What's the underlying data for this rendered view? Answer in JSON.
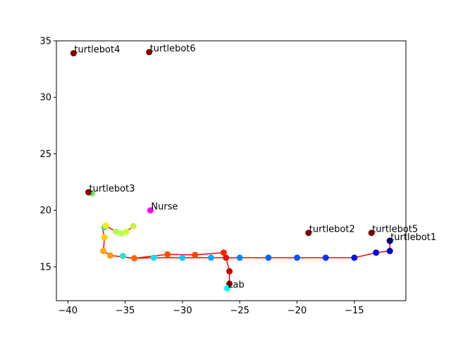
{
  "chart_data": {
    "type": "scatter",
    "xlim": [
      -41,
      -10.5
    ],
    "ylim": [
      12,
      35
    ],
    "x_ticks": [
      -40,
      -35,
      -30,
      -25,
      -20,
      -15
    ],
    "y_ticks": [
      15,
      20,
      25,
      30,
      35
    ],
    "grid": false,
    "path": {
      "color": "#ff0000",
      "points": [
        [
          -11.9,
          17.3
        ],
        [
          -11.9,
          16.4
        ],
        [
          -13.1,
          16.25
        ],
        [
          -15.0,
          15.8
        ],
        [
          -17.5,
          15.8
        ],
        [
          -20.0,
          15.8
        ],
        [
          -22.5,
          15.8
        ],
        [
          -25.0,
          15.8
        ],
        [
          -27.5,
          15.8
        ],
        [
          -30.0,
          15.8
        ],
        [
          -32.5,
          15.8
        ],
        [
          -34.2,
          15.75
        ],
        [
          -36.3,
          16.0
        ],
        [
          -36.9,
          16.4
        ],
        [
          -36.8,
          17.6
        ],
        [
          -37.0,
          18.5
        ],
        [
          -36.7,
          18.65
        ],
        [
          -35.8,
          18.1
        ],
        [
          -35.3,
          17.95
        ],
        [
          -34.9,
          18.1
        ],
        [
          -34.3,
          18.6
        ]
      ]
    },
    "path_markers": [
      {
        "x": -11.9,
        "y": 17.3,
        "color": "#000099"
      },
      {
        "x": -11.9,
        "y": 16.4,
        "color": "#0000cc"
      },
      {
        "x": -13.1,
        "y": 16.25,
        "color": "#0000ee"
      },
      {
        "x": -15.0,
        "y": 15.8,
        "color": "#0011ff"
      },
      {
        "x": -17.5,
        "y": 15.8,
        "color": "#0033ff"
      },
      {
        "x": -20.0,
        "y": 15.8,
        "color": "#0055ff"
      },
      {
        "x": -22.5,
        "y": 15.8,
        "color": "#0066ff"
      },
      {
        "x": -25.0,
        "y": 15.8,
        "color": "#0088ff"
      },
      {
        "x": -27.5,
        "y": 15.8,
        "color": "#00aaff"
      },
      {
        "x": -30.0,
        "y": 15.8,
        "color": "#00ccff"
      },
      {
        "x": -32.5,
        "y": 15.8,
        "color": "#00e5ff"
      },
      {
        "x": -35.2,
        "y": 15.95,
        "color": "#1de9d6"
      },
      {
        "x": -36.8,
        "y": 18.5,
        "color": "#33ddaa"
      },
      {
        "x": -37.9,
        "y": 21.5,
        "color": "#66ee66"
      },
      {
        "x": -35.8,
        "y": 18.1,
        "color": "#aaff55"
      },
      {
        "x": -35.3,
        "y": 17.95,
        "color": "#bbff44"
      },
      {
        "x": -34.9,
        "y": 18.1,
        "color": "#ccff33"
      },
      {
        "x": -34.3,
        "y": 18.6,
        "color": "#ccee44"
      },
      {
        "x": -36.7,
        "y": 18.65,
        "color": "#ffee00"
      },
      {
        "x": -36.8,
        "y": 17.6,
        "color": "#ffcc00"
      },
      {
        "x": -36.9,
        "y": 16.4,
        "color": "#ffaa00"
      },
      {
        "x": -36.3,
        "y": 16.0,
        "color": "#ff9900"
      },
      {
        "x": -34.2,
        "y": 15.75,
        "color": "#ff6600"
      },
      {
        "x": -31.3,
        "y": 16.1,
        "color": "#ff5500"
      },
      {
        "x": -28.9,
        "y": 16.05,
        "color": "#ff4400"
      },
      {
        "x": -26.4,
        "y": 16.25,
        "color": "#ff2200"
      },
      {
        "x": -26.2,
        "y": 15.8,
        "color": "#ee1100"
      },
      {
        "x": -25.9,
        "y": 14.6,
        "color": "#cc0000"
      },
      {
        "x": -25.9,
        "y": 13.5,
        "color": "#990000"
      }
    ],
    "segment2": {
      "color": "#ff0000",
      "points": [
        [
          -34.2,
          15.75
        ],
        [
          -31.3,
          16.1
        ],
        [
          -28.9,
          16.05
        ],
        [
          -26.4,
          16.25
        ],
        [
          -26.2,
          15.8
        ],
        [
          -25.9,
          14.6
        ],
        [
          -25.9,
          13.5
        ]
      ]
    },
    "labeled_points": [
      {
        "label": "turtlebot4",
        "x": -39.5,
        "y": 33.9,
        "color": "#800000"
      },
      {
        "label": "turtlebot6",
        "x": -32.9,
        "y": 34.0,
        "color": "#800000"
      },
      {
        "label": "turtlebot3",
        "x": -38.2,
        "y": 21.6,
        "color": "#800000"
      },
      {
        "label": "Nurse",
        "x": -32.8,
        "y": 20.0,
        "color": "#ff00ff"
      },
      {
        "label": "turtlebot2",
        "x": -19.0,
        "y": 18.0,
        "color": "#800000"
      },
      {
        "label": "turtlebot5",
        "x": -13.5,
        "y": 18.0,
        "color": "#800000"
      },
      {
        "label": "turtlebot1",
        "x": -11.9,
        "y": 17.3,
        "color": "#000080"
      },
      {
        "label": "Lab",
        "x": -26.1,
        "y": 13.1,
        "color": "#00ffff"
      }
    ]
  }
}
